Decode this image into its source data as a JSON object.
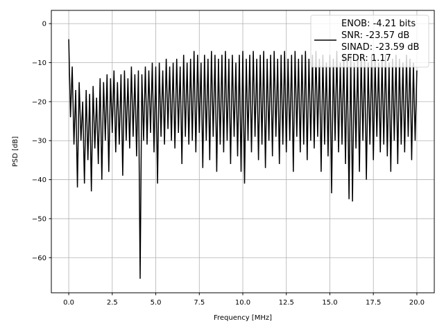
{
  "chart_data": {
    "type": "line",
    "title": "",
    "xlabel": "Frequency [MHz]",
    "ylabel": "PSD [dB]",
    "xlim": [
      -1.0,
      21.0
    ],
    "ylim": [
      -69.0,
      3.4
    ],
    "xticks": [
      0,
      2.5,
      5,
      7.5,
      10,
      12.5,
      15,
      17.5,
      20
    ],
    "xtick_labels": [
      "0.0",
      "2.5",
      "5.0",
      "7.5",
      "10.0",
      "12.5",
      "15.0",
      "17.5",
      "20.0"
    ],
    "yticks": [
      0,
      -10,
      -20,
      -30,
      -40,
      -50,
      -60
    ],
    "ytick_labels": [
      "0",
      "−10",
      "−20",
      "−30",
      "−40",
      "−50",
      "−60"
    ],
    "grid": true,
    "legend_placement": "top-right",
    "series": [
      {
        "name": "PSD",
        "color": "#000000",
        "x_start": 0,
        "x_step": 0.1,
        "y": [
          -4,
          -24,
          -11,
          -31,
          -17,
          -42,
          -15,
          -30,
          -20,
          -41,
          -17,
          -35,
          -18,
          -43,
          -16,
          -32,
          -19,
          -36,
          -14,
          -40,
          -15,
          -30,
          -13,
          -38,
          -14,
          -28,
          -12,
          -33,
          -15,
          -31,
          -13,
          -39,
          -12,
          -30,
          -14,
          -32,
          -11,
          -29,
          -13,
          -34,
          -12,
          -65.4,
          -13,
          -30,
          -11,
          -31,
          -12,
          -28,
          -10,
          -33,
          -11,
          -41,
          -10,
          -29,
          -12,
          -31,
          -9,
          -27,
          -11,
          -30,
          -10,
          -32,
          -9,
          -28,
          -11,
          -36,
          -8,
          -29,
          -10,
          -31,
          -9,
          -30,
          -7,
          -33,
          -8,
          -28,
          -10,
          -37,
          -8,
          -30,
          -9,
          -35,
          -7,
          -29,
          -8,
          -38,
          -9,
          -31,
          -8,
          -33,
          -7,
          -30,
          -9,
          -36,
          -8,
          -29,
          -10,
          -34,
          -8,
          -38,
          -7,
          -41,
          -9,
          -30,
          -8,
          -33,
          -7,
          -29,
          -9,
          -35,
          -8,
          -31,
          -7,
          -37,
          -9,
          -30,
          -8,
          -34,
          -7,
          -29,
          -9,
          -36,
          -8,
          -31,
          -7,
          -33,
          -9,
          -30,
          -8,
          -38,
          -7,
          -29,
          -9,
          -33,
          -8,
          -31,
          -7,
          -35,
          -9,
          -30,
          -8,
          -32,
          -7,
          -29,
          -9,
          -38,
          -8,
          -31,
          -10,
          -34,
          -8,
          -43.5,
          -9,
          -30,
          -7,
          -33,
          -10,
          -31,
          -8,
          -36,
          -9,
          -45,
          -8,
          -45.6,
          -10,
          -32,
          -9,
          -38,
          -8,
          -30,
          -9,
          -40,
          -10,
          -31,
          -8,
          -35,
          -9,
          -29,
          -10,
          -33,
          -9,
          -31,
          -8,
          -34,
          -10,
          -38,
          -9,
          -30,
          -8,
          -36,
          -9,
          -31,
          -10,
          -33,
          -8,
          -29,
          -9,
          -35,
          -10,
          -30,
          -12
        ]
      }
    ],
    "legend": {
      "entries": [
        "ENOB: -4.21 bits",
        "SNR: -23.57 dB",
        "SINAD: -23.59 dB",
        "SFDR: 1.17"
      ]
    }
  }
}
